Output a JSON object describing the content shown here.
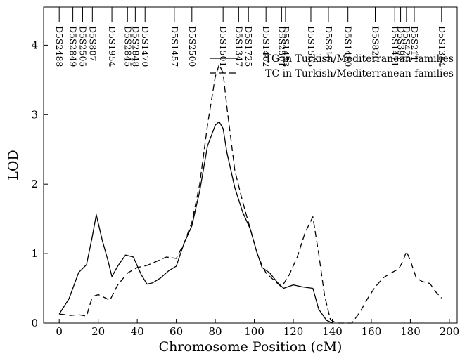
{
  "chart_data": {
    "type": "line",
    "xlabel": "Chromosome Position (cM)",
    "ylabel": "LOD",
    "xlim": [
      -8,
      204
    ],
    "ylim": [
      0,
      4.55
    ],
    "x_ticks": [
      0,
      20,
      40,
      60,
      80,
      100,
      120,
      140,
      160,
      180,
      200
    ],
    "y_ticks": [
      0,
      1,
      2,
      3,
      4
    ],
    "grid": false,
    "legend_position": "top-right",
    "markers": [
      {
        "label": "D5S2488",
        "x": 0
      },
      {
        "label": "D5S2849",
        "x": 7
      },
      {
        "label": "D5S2505",
        "x": 12
      },
      {
        "label": "D5S807",
        "x": 17
      },
      {
        "label": "D5S1954",
        "x": 27
      },
      {
        "label": "D5S2845",
        "x": 35
      },
      {
        "label": "D5S2848",
        "x": 39
      },
      {
        "label": "D5S1470",
        "x": 44
      },
      {
        "label": "D5S1457",
        "x": 59
      },
      {
        "label": "D5S2500",
        "x": 68
      },
      {
        "label": "D5S1501",
        "x": 84
      },
      {
        "label": "D5S1347",
        "x": 92
      },
      {
        "label": "D5S1725",
        "x": 97
      },
      {
        "label": "D5S1462",
        "x": 106
      },
      {
        "label": "D5S2501",
        "x": 114
      },
      {
        "label": "D5S1453",
        "x": 116
      },
      {
        "label": "D5S1505",
        "x": 129
      },
      {
        "label": "D5S816",
        "x": 138
      },
      {
        "label": "D5S1480",
        "x": 148
      },
      {
        "label": "D5S820",
        "x": 162
      },
      {
        "label": "D5S1471",
        "x": 172
      },
      {
        "label": "D5S397",
        "x": 175
      },
      {
        "label": "D5S429",
        "x": 178
      },
      {
        "label": "D5S211",
        "x": 182
      },
      {
        "label": "D5S1354",
        "x": 196
      }
    ],
    "series": [
      {
        "name": "TG in Turkish/Mediterranean families",
        "style": "solid",
        "points": [
          [
            0,
            0.13
          ],
          [
            5,
            0.35
          ],
          [
            10,
            0.73
          ],
          [
            14,
            0.84
          ],
          [
            17,
            1.25
          ],
          [
            19,
            1.56
          ],
          [
            22,
            1.2
          ],
          [
            25,
            0.9
          ],
          [
            27,
            0.67
          ],
          [
            30,
            0.82
          ],
          [
            34,
            0.98
          ],
          [
            38,
            0.95
          ],
          [
            42,
            0.7
          ],
          [
            45,
            0.56
          ],
          [
            48,
            0.58
          ],
          [
            52,
            0.65
          ],
          [
            56,
            0.75
          ],
          [
            60,
            0.82
          ],
          [
            64,
            1.15
          ],
          [
            68,
            1.4
          ],
          [
            72,
            1.9
          ],
          [
            76,
            2.55
          ],
          [
            80,
            2.85
          ],
          [
            82,
            2.9
          ],
          [
            84,
            2.8
          ],
          [
            86,
            2.45
          ],
          [
            90,
            1.95
          ],
          [
            94,
            1.6
          ],
          [
            98,
            1.35
          ],
          [
            101,
            1.05
          ],
          [
            104,
            0.8
          ],
          [
            108,
            0.72
          ],
          [
            112,
            0.58
          ],
          [
            115,
            0.5
          ],
          [
            120,
            0.55
          ],
          [
            125,
            0.52
          ],
          [
            130,
            0.5
          ],
          [
            133,
            0.2
          ],
          [
            137,
            0.04
          ],
          [
            140,
            0.0
          ]
        ]
      },
      {
        "name": "TC in Turkish/Mediterranean families",
        "style": "dashed",
        "points": [
          [
            0,
            0.13
          ],
          [
            6,
            0.11
          ],
          [
            10,
            0.12
          ],
          [
            14,
            0.1
          ],
          [
            17,
            0.38
          ],
          [
            20,
            0.41
          ],
          [
            23,
            0.37
          ],
          [
            26,
            0.33
          ],
          [
            30,
            0.55
          ],
          [
            35,
            0.72
          ],
          [
            40,
            0.8
          ],
          [
            45,
            0.83
          ],
          [
            50,
            0.89
          ],
          [
            55,
            0.95
          ],
          [
            60,
            0.93
          ],
          [
            64,
            1.15
          ],
          [
            68,
            1.45
          ],
          [
            72,
            2.0
          ],
          [
            76,
            2.85
          ],
          [
            80,
            3.55
          ],
          [
            82,
            3.72
          ],
          [
            84,
            3.6
          ],
          [
            86,
            3.1
          ],
          [
            90,
            2.2
          ],
          [
            94,
            1.75
          ],
          [
            98,
            1.35
          ],
          [
            102,
            0.95
          ],
          [
            106,
            0.72
          ],
          [
            110,
            0.62
          ],
          [
            114,
            0.52
          ],
          [
            118,
            0.7
          ],
          [
            122,
            0.95
          ],
          [
            126,
            1.3
          ],
          [
            130,
            1.53
          ],
          [
            133,
            1.0
          ],
          [
            136,
            0.4
          ],
          [
            139,
            0.05
          ],
          [
            142,
            0.0
          ],
          [
            150,
            0.0
          ],
          [
            154,
            0.15
          ],
          [
            158,
            0.35
          ],
          [
            162,
            0.52
          ],
          [
            166,
            0.65
          ],
          [
            170,
            0.72
          ],
          [
            174,
            0.78
          ],
          [
            176,
            0.88
          ],
          [
            178,
            1.03
          ],
          [
            180,
            0.9
          ],
          [
            183,
            0.65
          ],
          [
            186,
            0.6
          ],
          [
            190,
            0.57
          ],
          [
            193,
            0.45
          ],
          [
            196,
            0.36
          ]
        ]
      }
    ]
  }
}
